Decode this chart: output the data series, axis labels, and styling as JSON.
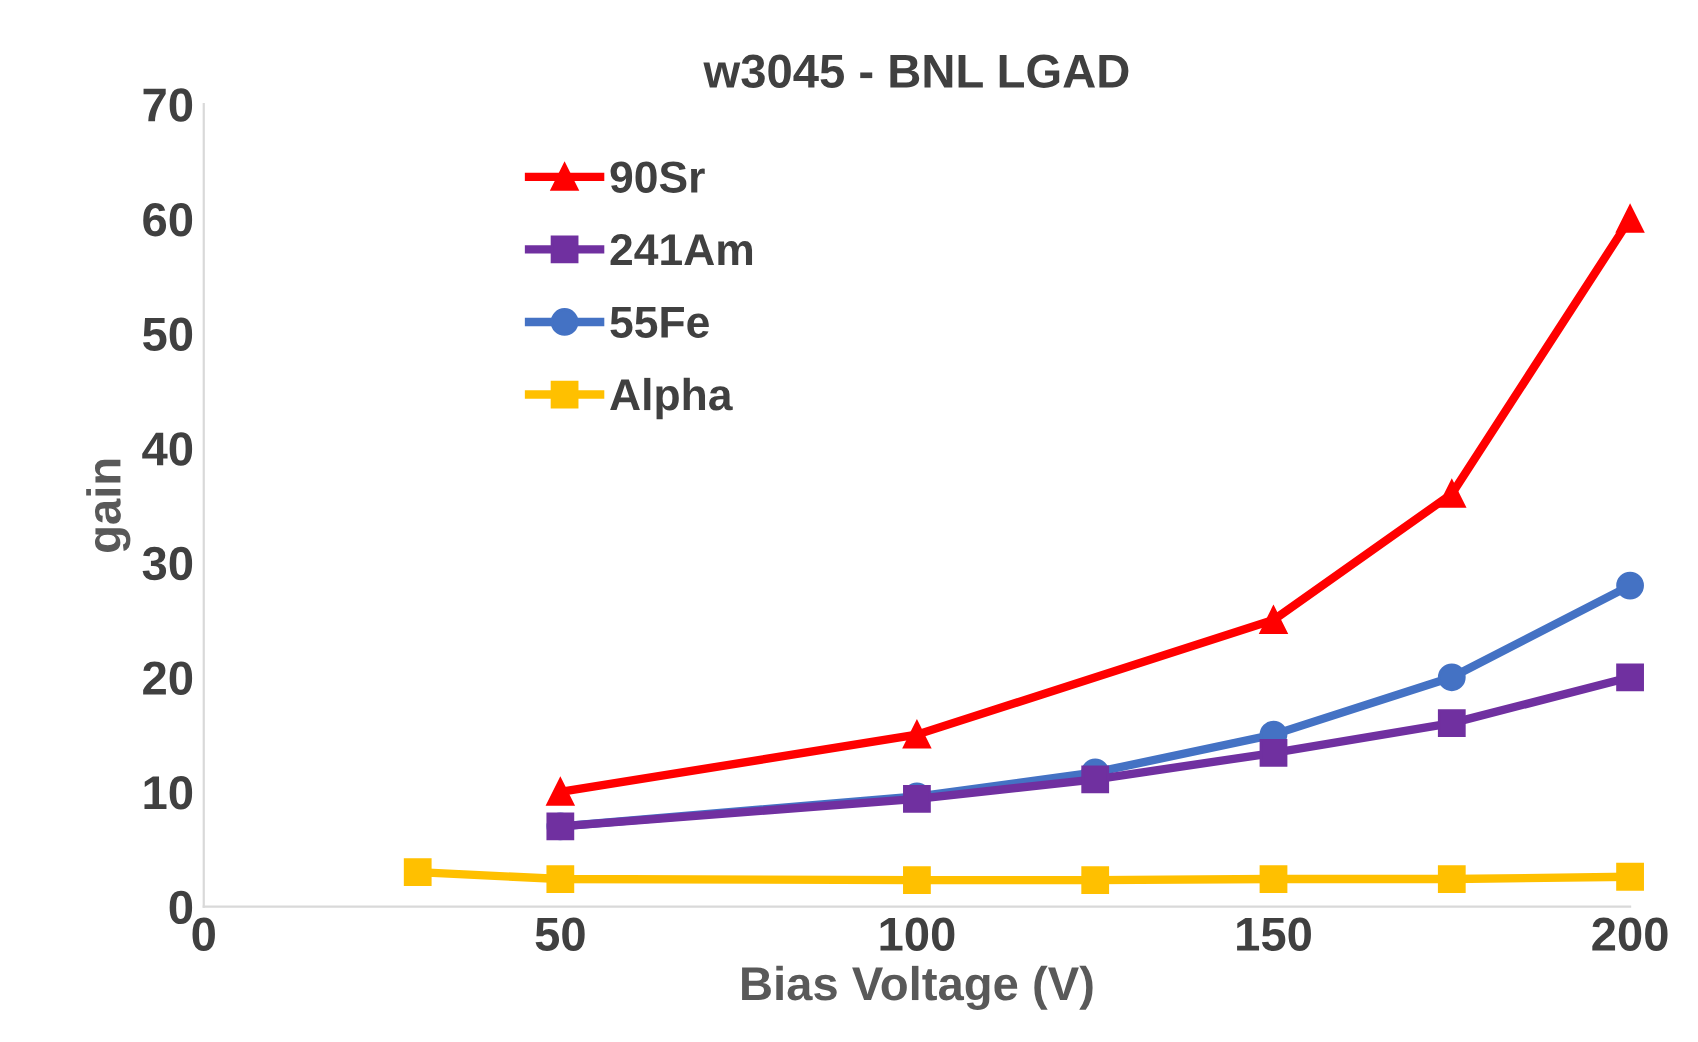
{
  "chart_data": {
    "type": "line",
    "title": "w3045 - BNL LGAD",
    "xlabel": "Bias Voltage (V)",
    "ylabel": "gain",
    "xlim": [
      0,
      200
    ],
    "xticks": [
      0,
      50,
      100,
      150,
      200
    ],
    "ylim": [
      0,
      70
    ],
    "yticks": [
      0,
      10,
      20,
      30,
      40,
      50,
      60,
      70
    ],
    "grid": false,
    "legend": "top left",
    "line_style": "solid",
    "series": [
      {
        "name": "90Sr",
        "color": "#ff0000",
        "marker": "triangle",
        "x": [
          50,
          100,
          150,
          175,
          200
        ],
        "values": [
          10,
          15,
          25,
          36,
          60
        ]
      },
      {
        "name": "241Am",
        "color": "#7030a0",
        "marker": "square",
        "x": [
          50,
          100,
          125,
          150,
          175,
          200
        ],
        "values": [
          7,
          9.4,
          11.1,
          13.4,
          16,
          20
        ]
      },
      {
        "name": "55Fe",
        "color": "#4472c4",
        "marker": "circle",
        "x": [
          50,
          100,
          125,
          150,
          175,
          200
        ],
        "values": [
          7,
          9.6,
          11.7,
          15,
          20,
          28
        ]
      },
      {
        "name": "Alpha",
        "color": "#ffc000",
        "marker": "square",
        "x": [
          30,
          50,
          100,
          125,
          150,
          175,
          200
        ],
        "values": [
          3,
          2.4,
          2.3,
          2.3,
          2.4,
          2.4,
          2.6
        ]
      }
    ]
  }
}
